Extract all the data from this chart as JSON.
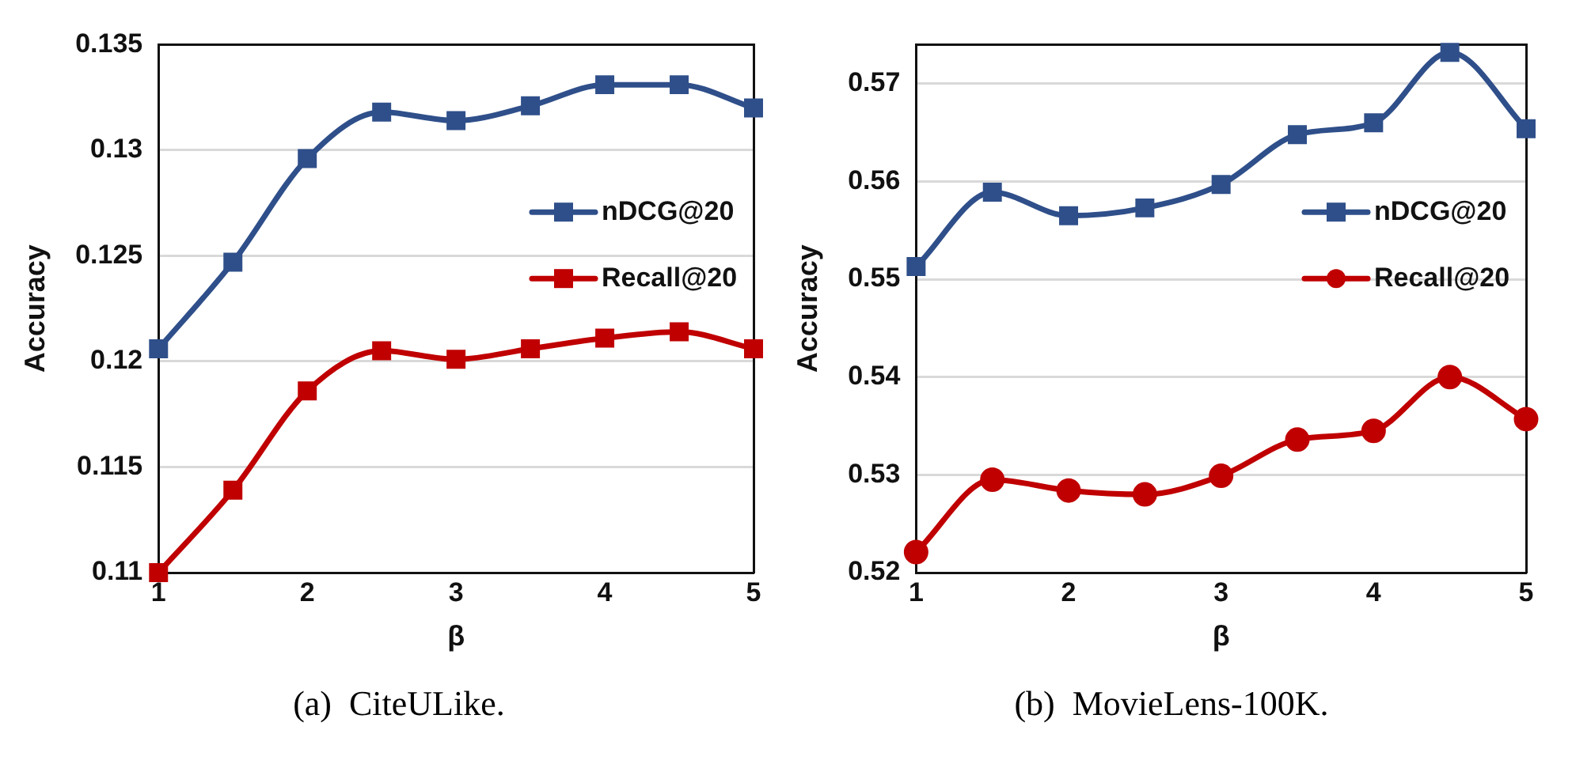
{
  "chart_data": [
    {
      "type": "line",
      "xlabel": "β",
      "ylabel": "Accuracy",
      "x": [
        1,
        1.5,
        2,
        2.5,
        3,
        3.5,
        4,
        4.5,
        5
      ],
      "xlim": [
        1,
        5
      ],
      "xticks": [
        1,
        2,
        3,
        4,
        5
      ],
      "ylim": [
        0.11,
        0.135
      ],
      "yticks": [
        0.11,
        0.115,
        0.12,
        0.125,
        0.13,
        0.135
      ],
      "grid": "y",
      "legend": "right",
      "annotations": [
        "(a)  CiteULike."
      ],
      "series": [
        {
          "name": "nDCG@20",
          "color": "#2f4f8a",
          "marker": "square",
          "values": [
            0.1206,
            0.1247,
            0.1296,
            0.1318,
            0.1314,
            0.1321,
            0.1331,
            0.1331,
            0.132
          ]
        },
        {
          "name": "Recall@20",
          "color": "#c00000",
          "marker": "square",
          "values": [
            0.11,
            0.1139,
            0.1186,
            0.1205,
            0.1201,
            0.1206,
            0.1211,
            0.1214,
            0.1206
          ]
        }
      ]
    },
    {
      "type": "line",
      "xlabel": "β",
      "ylabel": "Accuracy",
      "x": [
        1,
        1.5,
        2,
        2.5,
        3,
        3.5,
        4,
        4.5,
        5
      ],
      "xlim": [
        1,
        5
      ],
      "xticks": [
        1,
        2,
        3,
        4,
        5
      ],
      "ylim": [
        0.52,
        0.574
      ],
      "yticks": [
        0.52,
        0.53,
        0.54,
        0.55,
        0.56,
        0.57
      ],
      "grid": "y",
      "legend": "right",
      "annotations": [
        "(b)  MovieLens-100K."
      ],
      "series": [
        {
          "name": "nDCG@20",
          "color": "#2f4f8a",
          "marker": "square",
          "values": [
            0.5513,
            0.5589,
            0.5565,
            0.5573,
            0.5597,
            0.5648,
            0.566,
            0.5732,
            0.5654
          ]
        },
        {
          "name": "Recall@20",
          "color": "#c00000",
          "marker": "circle",
          "values": [
            0.5221,
            0.5295,
            0.5284,
            0.528,
            0.5299,
            0.5336,
            0.5345,
            0.54,
            0.5357
          ]
        }
      ]
    }
  ]
}
